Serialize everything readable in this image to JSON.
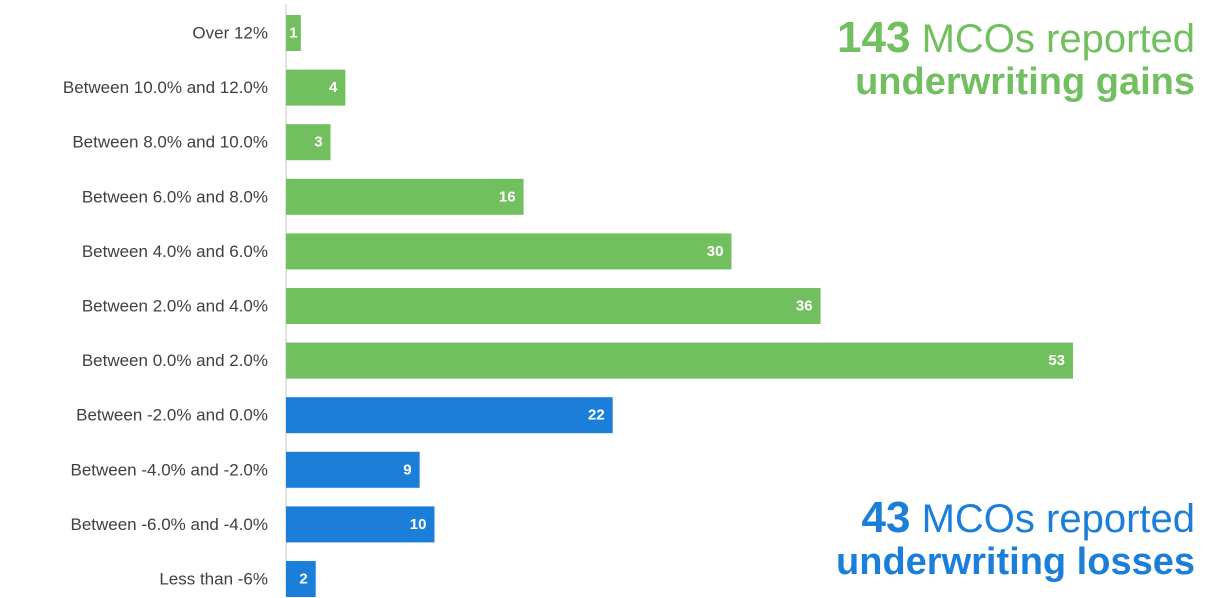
{
  "chart_data": {
    "type": "bar",
    "orientation": "horizontal",
    "categories": [
      "Over 12%",
      "Between 10.0% and 12.0%",
      "Between 8.0% and 10.0%",
      "Between 6.0% and 8.0%",
      "Between 4.0% and 6.0%",
      "Between 2.0% and 4.0%",
      "Between 0.0% and 2.0%",
      "Between -2.0% and 0.0%",
      "Between -4.0% and -2.0%",
      "Between -6.0% and -4.0%",
      "Less than -6%"
    ],
    "values": [
      1,
      4,
      3,
      16,
      30,
      36,
      53,
      22,
      9,
      10,
      2
    ],
    "bar_colors": [
      "#72bf5f",
      "#72bf5f",
      "#72bf5f",
      "#72bf5f",
      "#72bf5f",
      "#72bf5f",
      "#72bf5f",
      "#1b7fd9",
      "#1b7fd9",
      "#1b7fd9",
      "#1b7fd9"
    ],
    "data_labels": true,
    "xlim": [
      0,
      55
    ],
    "grid": false,
    "title": "",
    "xlabel": "",
    "ylabel": ""
  },
  "callouts": {
    "gains": {
      "number": "143",
      "text": " MCOs reported",
      "bold_text": "underwriting gains",
      "color": "#72bf5f"
    },
    "losses": {
      "number": "43",
      "text": " MCOs reported ",
      "bold_text": "underwriting losses",
      "color": "#1b7fd9"
    }
  }
}
